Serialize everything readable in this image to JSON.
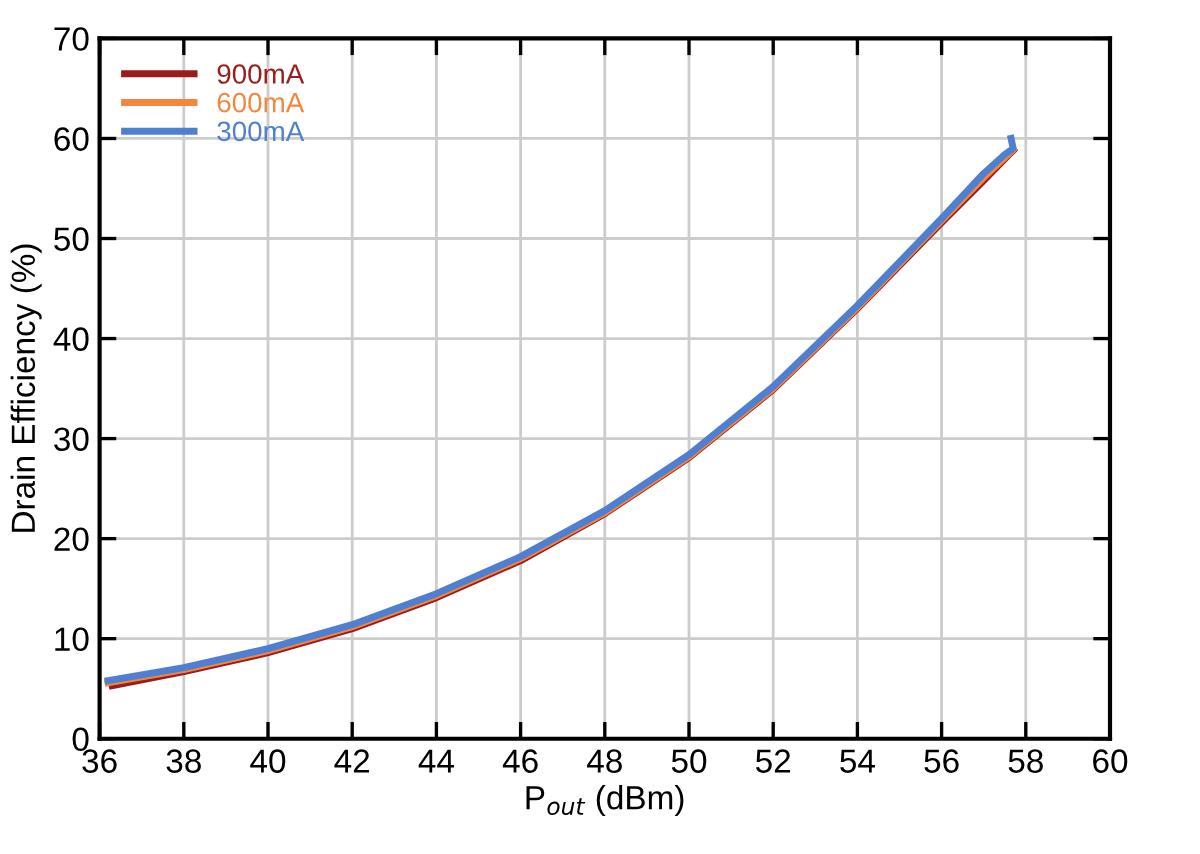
{
  "chart_data": {
    "type": "line",
    "xlabel": "P$_{out}$ (dBm)",
    "ylabel": "Drain Efficiency (%)",
    "xlim": [
      36,
      60
    ],
    "xticks": [
      36,
      38,
      40,
      42,
      44,
      46,
      48,
      50,
      52,
      54,
      56,
      58,
      60
    ],
    "ylim": [
      0,
      70
    ],
    "yticks": [
      0,
      10,
      20,
      30,
      40,
      50,
      60,
      70
    ],
    "grid": true,
    "legend": "top left",
    "series": [
      {
        "name": "900mA",
        "color": "#9b1c1c",
        "x": [
          36.3,
          38,
          40,
          42,
          44,
          46,
          48,
          50,
          52,
          54,
          56,
          57,
          57.6,
          57.7
        ],
        "values": [
          5.3,
          6.7,
          8.6,
          11.0,
          14.1,
          17.8,
          22.5,
          28.1,
          34.9,
          43.0,
          51.6,
          55.8,
          58.4,
          58.8
        ]
      },
      {
        "name": "600mA",
        "color": "#f4873e",
        "x": [
          36.2,
          38,
          40,
          42,
          44,
          46,
          48,
          50,
          52,
          54,
          56,
          57,
          57.6,
          57.7
        ],
        "values": [
          5.6,
          6.9,
          8.8,
          11.2,
          14.3,
          18.0,
          22.6,
          28.2,
          35.0,
          43.1,
          51.8,
          56.1,
          58.5,
          58.9
        ]
      },
      {
        "name": "300mA",
        "color": "#4f7fd0",
        "x": [
          36.2,
          38,
          40,
          42,
          44,
          46,
          48,
          50,
          52,
          54,
          56,
          57,
          57.5,
          57.7,
          57.65
        ],
        "values": [
          5.8,
          7.1,
          9.0,
          11.4,
          14.5,
          18.2,
          22.8,
          28.4,
          35.2,
          43.3,
          52.0,
          56.5,
          58.4,
          59.0,
          60.0
        ]
      }
    ]
  }
}
